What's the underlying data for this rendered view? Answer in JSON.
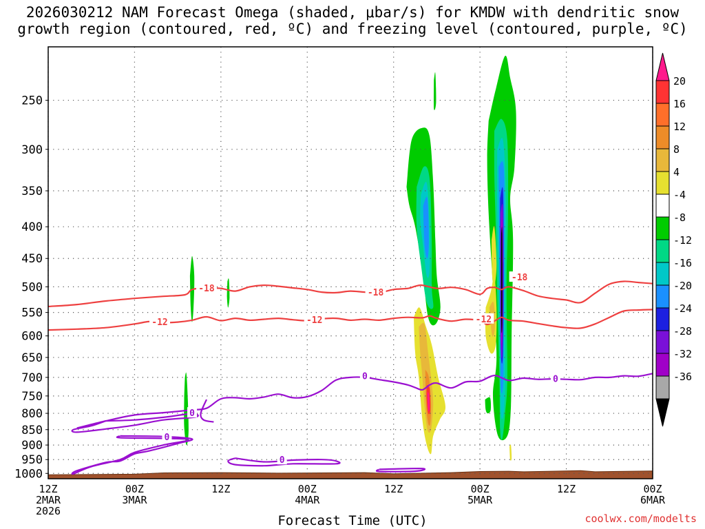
{
  "chart_data": {
    "type": "time-height cross section",
    "title_line_1": "2026030212 NAM Forecast Omega (shaded, μbar/s) for KMDW with dendritic snow",
    "title_line_2": "growth region (contoured, red, ºC) and freezing level (contoured, purple, ºC)",
    "xlabel": "Forecast Time (UTC)",
    "credit": "coolwx.com/modelts",
    "x_ticks": [
      {
        "hour": 0,
        "lines": [
          "12Z",
          "2MAR",
          "2026"
        ]
      },
      {
        "hour": 12,
        "lines": [
          "00Z",
          "3MAR"
        ]
      },
      {
        "hour": 24,
        "lines": [
          "12Z"
        ]
      },
      {
        "hour": 36,
        "lines": [
          "00Z",
          "4MAR"
        ]
      },
      {
        "hour": 48,
        "lines": [
          "12Z"
        ]
      },
      {
        "hour": 60,
        "lines": [
          "00Z",
          "5MAR"
        ]
      },
      {
        "hour": 72,
        "lines": [
          "12Z"
        ]
      },
      {
        "hour": 84,
        "lines": [
          "00Z",
          "6MAR"
        ]
      }
    ],
    "y_ticks": [
      250,
      300,
      350,
      400,
      450,
      500,
      550,
      600,
      650,
      700,
      750,
      800,
      850,
      900,
      950,
      1000
    ],
    "x_range_hours": [
      0,
      84
    ],
    "y_range_mb": [
      205,
      1020
    ],
    "colorbar": {
      "labels": [
        "20",
        "16",
        "12",
        "8",
        "4",
        "-4",
        "-8",
        "-12",
        "-16",
        "-20",
        "-24",
        "-28",
        "-32",
        "-36"
      ],
      "colors": [
        "#ff1a8c",
        "#ff3333",
        "#ff6f2a",
        "#ee8c28",
        "#e8b83a",
        "#e6e030",
        "#ffffff",
        "#00cc00",
        "#00d885",
        "#00c8c8",
        "#1a90ff",
        "#1c20e0",
        "#7a10d8",
        "#a000c8",
        "#a8a8a8",
        "#000000"
      ]
    },
    "omega_colors": {
      "m8": "#00cc00",
      "m12": "#00d885",
      "m16": "#00c8c8",
      "m20": "#1a90ff",
      "m24": "#1c20e0",
      "m28": "#7a10d8",
      "m32": "#a000c8",
      "m36": "#000000",
      "p4": "#e6e030",
      "p8": "#e8b83a",
      "p12": "#ee8c28",
      "p16": "#ff3333",
      "p20": "#ff1a8c"
    },
    "contour_labels": {
      "dgz_upper": [
        {
          "hour": 22,
          "mb": 502,
          "text": "-18"
        },
        {
          "hour": 45.5,
          "mb": 510,
          "text": "-18"
        },
        {
          "hour": 65.5,
          "mb": 482,
          "text": "-18"
        }
      ],
      "dgz_lower": [
        {
          "hour": 15.5,
          "mb": 569,
          "text": "-12"
        },
        {
          "hour": 37,
          "mb": 565,
          "text": "-12"
        },
        {
          "hour": 60.5,
          "mb": 563,
          "text": "-12"
        }
      ],
      "freezing": [
        {
          "hour": 20,
          "mb": 798,
          "text": "0"
        },
        {
          "hour": 16.5,
          "mb": 873,
          "text": "0"
        },
        {
          "hour": 32.5,
          "mb": 950,
          "text": "0"
        },
        {
          "hour": 44,
          "mb": 696,
          "text": "0"
        },
        {
          "hour": 70.5,
          "mb": 703,
          "text": "0"
        }
      ]
    },
    "series": [
      {
        "name": "dendritic -18C",
        "color": "#ee4040",
        "x": [
          0,
          4,
          8,
          12,
          16,
          19,
          20,
          22,
          24,
          26,
          28,
          30,
          32,
          34,
          36,
          38,
          40,
          42,
          44,
          46,
          48,
          50,
          51,
          52,
          54,
          56,
          58,
          60,
          61,
          62,
          63,
          64,
          66,
          68,
          70,
          72,
          74,
          76,
          78,
          80,
          82,
          84
        ],
        "y": [
          538,
          534,
          527,
          522,
          518,
          515,
          505,
          502,
          503,
          508,
          500,
          497,
          499,
          502,
          505,
          510,
          511,
          508,
          510,
          511,
          505,
          503,
          499,
          497,
          503,
          501,
          505,
          514,
          503,
          501,
          505,
          500,
          507,
          517,
          522,
          525,
          530,
          512,
          495,
          490,
          492,
          494
        ]
      },
      {
        "name": "dendritic -12C",
        "color": "#ee4040",
        "x": [
          0,
          4,
          8,
          12,
          14,
          16,
          18,
          20,
          22,
          24,
          26,
          28,
          30,
          32,
          34,
          36,
          38,
          40,
          42,
          44,
          46,
          48,
          50,
          52,
          53,
          54,
          56,
          58,
          60,
          61,
          62,
          63,
          64,
          66,
          68,
          70,
          72,
          74,
          76,
          78,
          80,
          82,
          84
        ],
        "y": [
          587,
          585,
          582,
          574,
          569,
          571,
          570,
          566,
          559,
          567,
          562,
          566,
          564,
          562,
          565,
          567,
          563,
          562,
          566,
          564,
          566,
          562,
          560,
          561,
          557,
          562,
          568,
          564,
          567,
          575,
          568,
          560,
          566,
          568,
          573,
          578,
          582,
          583,
          574,
          560,
          547,
          545,
          544
        ]
      },
      {
        "name": "freezing level 0C",
        "color": "#9a10d0",
        "x": [
          4,
          8,
          12,
          16,
          20,
          22,
          24,
          26,
          28,
          30,
          32,
          34,
          36,
          38,
          40,
          42,
          44,
          46,
          48,
          50,
          51,
          52,
          53,
          54,
          56,
          58,
          60,
          62,
          64,
          66,
          68,
          70,
          72,
          74,
          76,
          78,
          80,
          82,
          84
        ],
        "y": [
          845,
          823,
          805,
          798,
          790,
          785,
          758,
          755,
          758,
          753,
          745,
          755,
          752,
          735,
          707,
          700,
          700,
          706,
          712,
          720,
          727,
          733,
          720,
          715,
          728,
          712,
          710,
          695,
          708,
          702,
          705,
          704,
          705,
          706,
          700,
          700,
          696,
          697,
          690
        ]
      }
    ]
  }
}
